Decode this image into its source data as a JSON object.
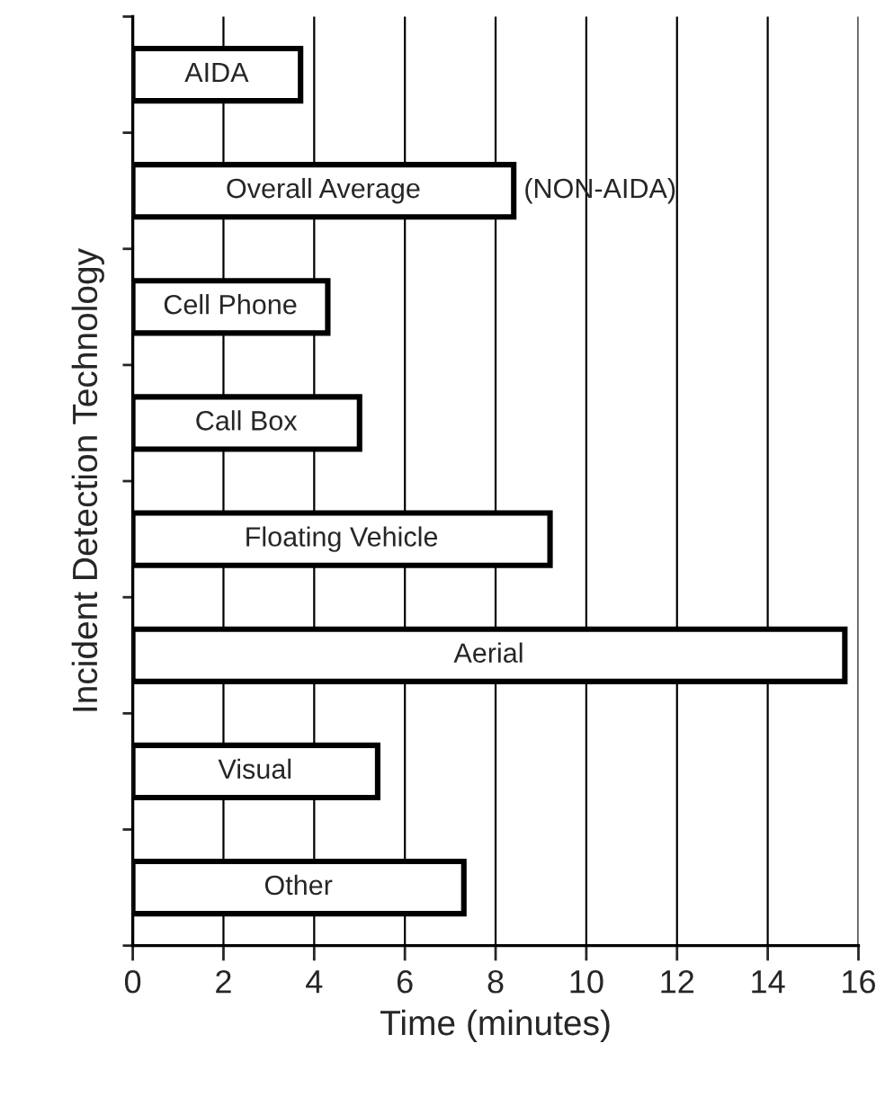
{
  "chart_data": {
    "type": "bar",
    "orientation": "horizontal",
    "xlabel": "Time (minutes)",
    "ylabel": "Incident Detection Technology",
    "categories": [
      "AIDA",
      "Overall Average",
      "Cell Phone",
      "Call Box",
      "Floating Vehicle",
      "Aerial",
      "Visual",
      "Other"
    ],
    "values": [
      3.7,
      8.4,
      4.3,
      5.0,
      9.2,
      15.7,
      5.4,
      7.3
    ],
    "color": "#ffffff",
    "xlim": [
      0,
      16
    ],
    "xticks": [
      0,
      2,
      4,
      6,
      8,
      10,
      12,
      14,
      16
    ],
    "grid": "x",
    "legend": false,
    "annotations": [
      {
        "text": "(NON-AIDA)",
        "x": 8.4,
        "y": "Overall Average"
      }
    ]
  }
}
